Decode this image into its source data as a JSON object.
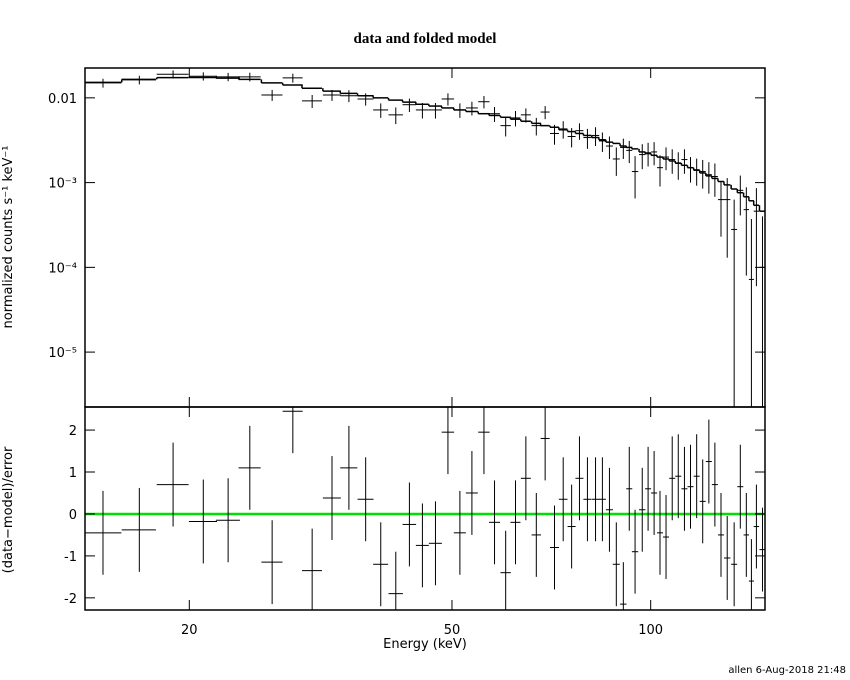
{
  "chart_data": [
    {
      "type": "spectrum",
      "title": "data and folded model",
      "ylabel": "normalized counts s⁻¹ keV⁻¹",
      "log_x": true,
      "log_y": true,
      "color": "#000000",
      "model_color": "#000000",
      "xlim": [
        13.9,
        149
      ],
      "ylim": [
        2.25e-06,
        0.0225
      ],
      "yticks": [
        0.01,
        {
          "value": 0.001,
          "label": "10⁻³"
        },
        {
          "value": 0.0001,
          "label": "10⁻⁴"
        },
        {
          "value": 1e-05,
          "label": "10⁻⁵"
        }
      ],
      "x": [
        14.8,
        16.8,
        18.9,
        21.0,
        22.9,
        24.7,
        26.7,
        28.7,
        30.7,
        32.9,
        34.9,
        37.0,
        39.0,
        41.1,
        43.1,
        45.1,
        47.2,
        49.3,
        51.4,
        53.6,
        55.9,
        58.0,
        60.3,
        62.4,
        64.7,
        67.1,
        69.2,
        71.5,
        73.7,
        75.9,
        78.0,
        80.2,
        82.5,
        84.5,
        86.6,
        88.7,
        90.9,
        92.8,
        94.7,
        97.1,
        99.1,
        101.2,
        103.3,
        105.5,
        107.8,
        110.1,
        112.5,
        114.9,
        117.4,
        119.9,
        122.5,
        125.1,
        127.8,
        130.6,
        133.8,
        136.7,
        139.6,
        142.1,
        144.6,
        147.7
      ],
      "xerr": [
        0.98,
        1.0,
        1.05,
        1.03,
        0.96,
        0.95,
        0.98,
        1.0,
        1.07,
        1.03,
        1.04,
        1.03,
        1.02,
        1.03,
        1.02,
        1.02,
        1.07,
        1.07,
        1.08,
        1.12,
        1.11,
        1.11,
        1.09,
        1.09,
        1.13,
        1.1,
        1.09,
        1.12,
        1.11,
        1.06,
        1.09,
        1.12,
        1.07,
        1.03,
        1.06,
        1.08,
        1.02,
        0.97,
        1.06,
        1.08,
        1.04,
        1.06,
        1.08,
        1.1,
        1.13,
        1.15,
        1.18,
        1.2,
        1.23,
        1.26,
        1.28,
        1.31,
        1.34,
        1.46,
        1.4,
        1.43,
        1.32,
        1.24,
        1.36,
        1.55
      ],
      "values": [
        0.015,
        0.0163,
        0.019,
        0.018,
        0.0177,
        0.0177,
        0.0108,
        0.0172,
        0.0092,
        0.0108,
        0.0106,
        0.0097,
        0.0072,
        0.0063,
        0.0083,
        0.0072,
        0.0072,
        0.0097,
        0.0072,
        0.0076,
        0.009,
        0.0065,
        0.0047,
        0.0058,
        0.0063,
        0.0047,
        0.0068,
        0.0038,
        0.0043,
        0.0035,
        0.0041,
        0.0034,
        0.0036,
        0.0031,
        0.0027,
        0.0019,
        0.0026,
        0.0024,
        0.00135,
        0.00214,
        0.00225,
        0.0023,
        0.0015,
        0.002,
        0.00187,
        0.00168,
        0.00187,
        0.0015,
        0.00142,
        0.00135,
        0.00124,
        0.00118,
        0.00063,
        0.00063,
        0.00028,
        0.00081,
        0.00048,
        7.2e-05,
        0.00046,
        0.0001
      ],
      "yerr": [
        0.0018,
        0.0019,
        0.0021,
        0.002,
        0.002,
        0.0021,
        0.0016,
        0.0021,
        0.0016,
        0.0016,
        0.0017,
        0.0016,
        0.0014,
        0.0014,
        0.0015,
        0.0015,
        0.0015,
        0.0016,
        0.0014,
        0.0014,
        0.0015,
        0.0013,
        0.0012,
        0.0012,
        0.0012,
        0.0011,
        0.0012,
        0.001,
        0.001,
        0.0009,
        0.0009,
        0.0009,
        0.0009,
        0.0008,
        0.0008,
        0.0007,
        0.0007,
        0.0007,
        0.0007,
        0.0007,
        0.0007,
        0.0007,
        0.0006,
        0.0006,
        0.0006,
        0.0006,
        0.0006,
        0.0005,
        0.0005,
        0.0005,
        0.0005,
        0.0005,
        0.0004,
        0.0005,
        0.00035,
        0.0004,
        0.0004,
        0.0003,
        0.0004,
        0.0003
      ],
      "model": [
        0.0152,
        0.0165,
        0.0173,
        0.0174,
        0.0171,
        0.0165,
        0.015,
        0.0142,
        0.013,
        0.012,
        0.0113,
        0.0106,
        0.01,
        0.0094,
        0.0089,
        0.0084,
        0.008,
        0.0076,
        0.0072,
        0.0069,
        0.0065,
        0.0062,
        0.0059,
        0.0056,
        0.0053,
        0.005,
        0.0047,
        0.0045,
        0.0042,
        0.004,
        0.0038,
        0.0036,
        0.0034,
        0.0032,
        0.003,
        0.0029,
        0.0027,
        0.0026,
        0.0025,
        0.0023,
        0.0022,
        0.0021,
        0.002,
        0.0019,
        0.0018,
        0.0017,
        0.0016,
        0.0015,
        0.0014,
        0.0013,
        0.0012,
        0.00112,
        0.00103,
        0.00094,
        0.00084,
        0.00076,
        0.00068,
        0.00061,
        0.00054,
        0.00046
      ]
    },
    {
      "type": "residual",
      "xlabel": "Energy (keV)",
      "ylabel": "(data−model)/error",
      "log_x": true,
      "color": "#000000",
      "hline": 0,
      "hline_color": "#00e000",
      "xlim": [
        13.9,
        149
      ],
      "ylim": [
        -2.29,
        2.55
      ],
      "xticks": [
        20,
        50,
        100
      ],
      "yticks": [
        -2,
        -1,
        0,
        1,
        2
      ],
      "x": [
        14.8,
        16.8,
        18.9,
        21.0,
        22.9,
        24.7,
        26.7,
        28.7,
        30.7,
        32.9,
        34.9,
        37.0,
        39.0,
        41.1,
        43.1,
        45.1,
        47.2,
        49.3,
        51.4,
        53.6,
        55.9,
        58.0,
        60.3,
        62.4,
        64.7,
        67.1,
        69.2,
        71.5,
        73.7,
        75.9,
        78.0,
        80.2,
        82.5,
        84.5,
        86.6,
        88.7,
        90.9,
        92.8,
        94.7,
        97.1,
        99.1,
        101.2,
        103.3,
        105.5,
        107.8,
        110.1,
        112.5,
        114.9,
        117.4,
        119.9,
        122.5,
        125.1,
        127.8,
        130.6,
        133.8,
        136.7,
        139.6,
        142.1,
        144.6,
        147.7
      ],
      "xerr": [
        0.98,
        1.0,
        1.05,
        1.03,
        0.96,
        0.95,
        0.98,
        1.0,
        1.07,
        1.03,
        1.04,
        1.03,
        1.02,
        1.03,
        1.02,
        1.02,
        1.07,
        1.07,
        1.08,
        1.12,
        1.11,
        1.11,
        1.09,
        1.09,
        1.13,
        1.1,
        1.09,
        1.12,
        1.11,
        1.06,
        1.09,
        1.12,
        1.07,
        1.03,
        1.06,
        1.08,
        1.02,
        0.97,
        1.06,
        1.08,
        1.04,
        1.06,
        1.08,
        1.1,
        1.13,
        1.15,
        1.18,
        1.2,
        1.23,
        1.26,
        1.28,
        1.31,
        1.34,
        1.46,
        1.4,
        1.43,
        1.32,
        1.24,
        1.36,
        1.55
      ],
      "values": [
        -0.45,
        -0.38,
        0.7,
        -0.18,
        -0.15,
        1.1,
        -1.15,
        2.45,
        -1.35,
        0.38,
        1.1,
        0.35,
        -1.2,
        -1.9,
        -0.25,
        -0.75,
        -0.7,
        1.95,
        -0.45,
        0.5,
        1.95,
        -0.2,
        -1.4,
        -0.2,
        0.85,
        -0.5,
        1.8,
        -0.8,
        0.35,
        -0.3,
        0.85,
        0.35,
        0.35,
        0.35,
        0.1,
        -1.2,
        -2.15,
        0.6,
        -0.9,
        0.1,
        0.6,
        0.5,
        -0.45,
        -0.55,
        0.85,
        0.9,
        0.6,
        0.65,
        0.9,
        0.3,
        1.25,
        0.7,
        -0.5,
        -1.05,
        -1.2,
        0.65,
        -0.5,
        -1.6,
        -0.3,
        -0.85
      ],
      "yerr": [
        1,
        1,
        1,
        1,
        1,
        1,
        1,
        1,
        1,
        1,
        1,
        1,
        1,
        1,
        1,
        1,
        1,
        1,
        1,
        1,
        1,
        1,
        1,
        1,
        1,
        1,
        1,
        1,
        1,
        1,
        1,
        1,
        1,
        1,
        1,
        1,
        1,
        1,
        1,
        1,
        1,
        1,
        1,
        1,
        1,
        1,
        1,
        1,
        1,
        1,
        1,
        1,
        1,
        1,
        1,
        1,
        1,
        1,
        1,
        1
      ]
    }
  ],
  "footer": "allen  6-Aug-2018 21:48"
}
